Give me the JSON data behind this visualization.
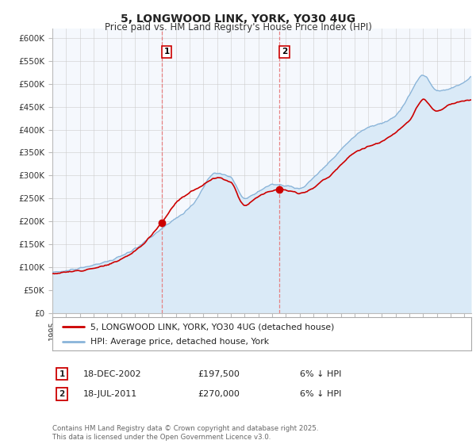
{
  "title": "5, LONGWOOD LINK, YORK, YO30 4UG",
  "subtitle": "Price paid vs. HM Land Registry's House Price Index (HPI)",
  "ylabel_ticks": [
    "£0",
    "£50K",
    "£100K",
    "£150K",
    "£200K",
    "£250K",
    "£300K",
    "£350K",
    "£400K",
    "£450K",
    "£500K",
    "£550K",
    "£600K"
  ],
  "ylim": [
    0,
    620000
  ],
  "xlim_start": 1995.0,
  "xlim_end": 2025.5,
  "xtick_years": [
    1995,
    1996,
    1997,
    1998,
    1999,
    2000,
    2001,
    2002,
    2003,
    2004,
    2005,
    2006,
    2007,
    2008,
    2009,
    2010,
    2011,
    2012,
    2013,
    2014,
    2015,
    2016,
    2017,
    2018,
    2019,
    2020,
    2021,
    2022,
    2023,
    2024,
    2025
  ],
  "sale1_x": 2002.96,
  "sale1_y": 197500,
  "sale1_label": "1",
  "sale2_x": 2011.54,
  "sale2_y": 270000,
  "sale2_label": "2",
  "vline1_x": 2002.96,
  "vline2_x": 2011.54,
  "legend_line1": "5, LONGWOOD LINK, YORK, YO30 4UG (detached house)",
  "legend_line2": "HPI: Average price, detached house, York",
  "annotation1_label": "1",
  "annotation1_date": "18-DEC-2002",
  "annotation1_price": "£197,500",
  "annotation1_hpi": "6% ↓ HPI",
  "annotation2_label": "2",
  "annotation2_date": "18-JUL-2011",
  "annotation2_price": "£270,000",
  "annotation2_hpi": "6% ↓ HPI",
  "copyright_text": "Contains HM Land Registry data © Crown copyright and database right 2025.\nThis data is licensed under the Open Government Licence v3.0.",
  "red_line_color": "#cc0000",
  "blue_line_color": "#89b4d9",
  "blue_fill_color": "#daeaf7",
  "vline_color": "#e87070",
  "background_color": "#ffffff",
  "plot_bg_color": "#f5f8fd",
  "hpi_anchors_x": [
    1995,
    1997,
    1999,
    2001,
    2003,
    2005,
    2007,
    2008,
    2009,
    2010,
    2011,
    2012,
    2013,
    2014,
    2015,
    2016,
    2017,
    2018,
    2019,
    2020,
    2021,
    2022,
    2023,
    2024,
    2025.5
  ],
  "hpi_anchors_y": [
    88000,
    98000,
    112000,
    140000,
    185000,
    230000,
    305000,
    295000,
    250000,
    265000,
    280000,
    278000,
    272000,
    295000,
    325000,
    355000,
    385000,
    405000,
    415000,
    430000,
    475000,
    520000,
    485000,
    490000,
    515000
  ],
  "prop_anchors_x": [
    1995,
    1997,
    1999,
    2001,
    2002.96,
    2004,
    2006,
    2007,
    2008,
    2009,
    2010,
    2011.54,
    2013,
    2015,
    2017,
    2019,
    2021,
    2022,
    2023,
    2024,
    2025.5
  ],
  "prop_anchors_y": [
    86000,
    93000,
    105000,
    135000,
    197500,
    240000,
    280000,
    295000,
    285000,
    235000,
    255000,
    270000,
    262000,
    295000,
    350000,
    375000,
    420000,
    465000,
    440000,
    455000,
    465000
  ]
}
